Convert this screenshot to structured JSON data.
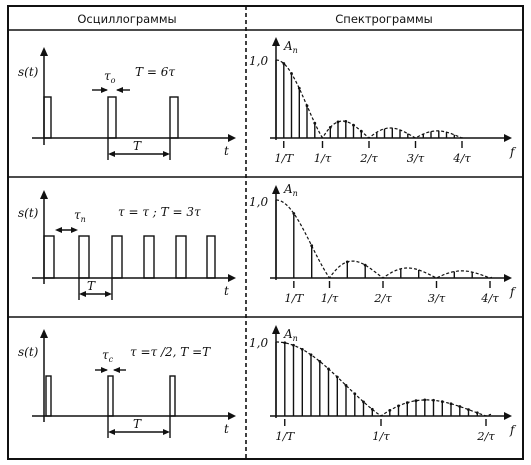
{
  "headers": {
    "left": "Осциллограммы",
    "right": "Спектрограммы"
  },
  "rows": [
    {
      "signal_label": "s(t)",
      "tau_label": "τ",
      "tau_sub": "o",
      "relation": "T = 6τ",
      "period_label": "T",
      "time_label": "t",
      "amp_label": "A",
      "amp_sub": "n",
      "one_label": "1,0",
      "freq_label": "f",
      "freq_ticks": [
        "1/T",
        "1/τ",
        "2/τ",
        "3/τ",
        "4/τ"
      ],
      "duty_ratio": 6,
      "pulse_count": 3
    },
    {
      "signal_label": "s(t)",
      "tau_label": "τ",
      "tau_sub": "n",
      "relation": "τ = τ ;  T = 3τ",
      "period_label": "T",
      "time_label": "t",
      "amp_label": "A",
      "amp_sub": "n",
      "one_label": "1,0",
      "freq_label": "f",
      "freq_ticks": [
        "1/T",
        "1/τ",
        "2/τ",
        "3/τ",
        "4/τ"
      ],
      "duty_ratio": 3,
      "pulse_count": 6
    },
    {
      "signal_label": "s(t)",
      "tau_label": "τ",
      "tau_sub": "c",
      "relation": "τ =τ /2, T =T",
      "period_label": "T",
      "time_label": "t",
      "amp_label": "A",
      "amp_sub": "n",
      "one_label": "1,0",
      "freq_label": "f",
      "freq_ticks": [
        "1/T",
        "1/τ",
        "2/τ"
      ],
      "duty_ratio": 12,
      "pulse_count": 3
    }
  ]
}
